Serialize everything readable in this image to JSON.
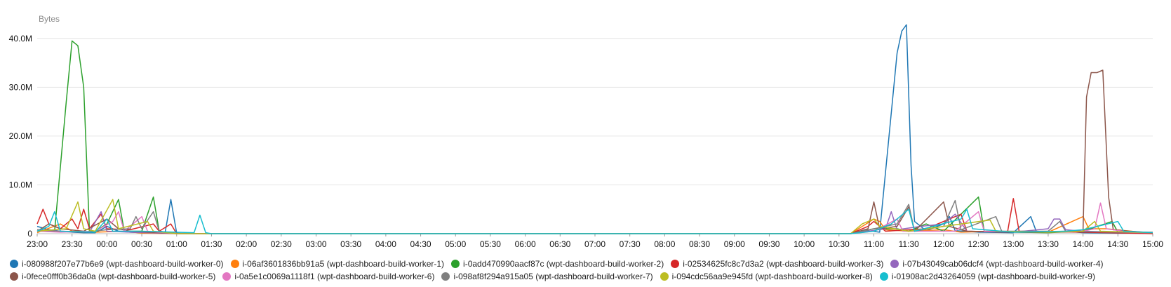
{
  "chart_data": {
    "type": "line",
    "title": "",
    "ylabel": "Bytes",
    "xlabel": "",
    "ylim": [
      0,
      45000000
    ],
    "y_ticks": [
      {
        "value": 0,
        "label": "0"
      },
      {
        "value": 10000000,
        "label": "10.0M"
      },
      {
        "value": 20000000,
        "label": "20.0M"
      },
      {
        "value": 30000000,
        "label": "30.0M"
      },
      {
        "value": 40000000,
        "label": "40.0M"
      }
    ],
    "x_ticks": [
      "23:00",
      "23:30",
      "00:00",
      "00:30",
      "01:00",
      "01:30",
      "02:00",
      "02:30",
      "03:00",
      "03:30",
      "04:00",
      "04:30",
      "05:00",
      "05:30",
      "06:00",
      "06:30",
      "07:00",
      "07:30",
      "08:00",
      "08:30",
      "09:00",
      "09:30",
      "10:00",
      "10:30",
      "11:00",
      "11:30",
      "12:00",
      "12:30",
      "13:00",
      "13:30",
      "14:00",
      "14:30",
      "15:00"
    ],
    "grid": true,
    "legend_position": "bottom",
    "series": [
      {
        "name": "i-080988f207e77b6e9 (wpt-dashboard-build-worker-0)",
        "color": "#1f77b4",
        "points": [
          [
            "23:00",
            1500000
          ],
          [
            "23:10",
            800000
          ],
          [
            "23:20",
            500000
          ],
          [
            "23:30",
            300000
          ],
          [
            "23:40",
            200000
          ],
          [
            "23:50",
            200000
          ],
          [
            "00:00",
            1500000
          ],
          [
            "00:10",
            500000
          ],
          [
            "00:20",
            300000
          ],
          [
            "00:30",
            200000
          ],
          [
            "00:40",
            300000
          ],
          [
            "00:50",
            100000
          ],
          [
            "00:55",
            7000000
          ],
          [
            "01:00",
            100000
          ],
          [
            "01:10",
            0
          ],
          [
            "10:40",
            0
          ],
          [
            "10:55",
            600000
          ],
          [
            "11:05",
            300000
          ],
          [
            "11:20",
            37000000
          ],
          [
            "11:24",
            41500000
          ],
          [
            "11:28",
            42800000
          ],
          [
            "11:32",
            14000000
          ],
          [
            "11:35",
            2500000
          ],
          [
            "11:45",
            600000
          ],
          [
            "12:00",
            2000000
          ],
          [
            "12:05",
            3500000
          ],
          [
            "12:10",
            600000
          ],
          [
            "12:30",
            300000
          ],
          [
            "13:00",
            200000
          ],
          [
            "13:15",
            3500000
          ],
          [
            "13:20",
            300000
          ],
          [
            "13:45",
            500000
          ],
          [
            "14:00",
            200000
          ],
          [
            "14:30",
            100000
          ],
          [
            "15:00",
            100000
          ]
        ]
      },
      {
        "name": "i-06af3601836bb91a5 (wpt-dashboard-build-worker-1)",
        "color": "#ff7f0e",
        "points": [
          [
            "23:00",
            200000
          ],
          [
            "23:20",
            2000000
          ],
          [
            "23:30",
            500000
          ],
          [
            "23:50",
            300000
          ],
          [
            "00:15",
            500000
          ],
          [
            "00:30",
            100000
          ],
          [
            "01:00",
            0
          ],
          [
            "10:40",
            0
          ],
          [
            "10:50",
            1500000
          ],
          [
            "11:00",
            3000000
          ],
          [
            "11:05",
            2500000
          ],
          [
            "11:10",
            800000
          ],
          [
            "11:30",
            500000
          ],
          [
            "12:00",
            800000
          ],
          [
            "12:15",
            300000
          ],
          [
            "12:45",
            500000
          ],
          [
            "13:30",
            300000
          ],
          [
            "14:00",
            3500000
          ],
          [
            "14:05",
            1000000
          ],
          [
            "14:20",
            1000000
          ],
          [
            "14:50",
            300000
          ],
          [
            "15:00",
            0
          ]
        ]
      },
      {
        "name": "i-0add470990aacf87c (wpt-dashboard-build-worker-2)",
        "color": "#2ca02c",
        "points": [
          [
            "23:00",
            500000
          ],
          [
            "23:15",
            500000
          ],
          [
            "23:25",
            27000000
          ],
          [
            "23:30",
            39500000
          ],
          [
            "23:35",
            38500000
          ],
          [
            "23:40",
            30000000
          ],
          [
            "23:45",
            500000
          ],
          [
            "23:50",
            500000
          ],
          [
            "00:00",
            2000000
          ],
          [
            "00:10",
            7000000
          ],
          [
            "00:15",
            500000
          ],
          [
            "00:30",
            500000
          ],
          [
            "00:40",
            7500000
          ],
          [
            "00:45",
            500000
          ],
          [
            "01:00",
            0
          ],
          [
            "10:40",
            0
          ],
          [
            "11:00",
            1000000
          ],
          [
            "11:20",
            1000000
          ],
          [
            "11:30",
            500000
          ],
          [
            "11:45",
            2000000
          ],
          [
            "12:00",
            500000
          ],
          [
            "12:30",
            7500000
          ],
          [
            "12:35",
            500000
          ],
          [
            "13:00",
            300000
          ],
          [
            "13:30",
            200000
          ],
          [
            "14:00",
            500000
          ],
          [
            "14:25",
            2500000
          ],
          [
            "14:30",
            300000
          ],
          [
            "15:00",
            100000
          ]
        ]
      },
      {
        "name": "i-02534625fc8c7d3a2 (wpt-dashboard-build-worker-3)",
        "color": "#d62728",
        "points": [
          [
            "23:00",
            2000000
          ],
          [
            "23:05",
            5000000
          ],
          [
            "23:10",
            2000000
          ],
          [
            "23:20",
            1000000
          ],
          [
            "23:30",
            3000000
          ],
          [
            "23:35",
            1000000
          ],
          [
            "23:40",
            5000000
          ],
          [
            "23:45",
            1000000
          ],
          [
            "23:55",
            4000000
          ],
          [
            "00:00",
            1000000
          ],
          [
            "00:20",
            800000
          ],
          [
            "00:40",
            2000000
          ],
          [
            "00:45",
            500000
          ],
          [
            "00:55",
            2000000
          ],
          [
            "01:00",
            0
          ],
          [
            "10:40",
            0
          ],
          [
            "10:55",
            1500000
          ],
          [
            "11:00",
            2500000
          ],
          [
            "11:10",
            500000
          ],
          [
            "11:45",
            1000000
          ],
          [
            "12:10",
            3500000
          ],
          [
            "12:15",
            4000000
          ],
          [
            "12:20",
            500000
          ],
          [
            "12:55",
            300000
          ],
          [
            "13:00",
            7200000
          ],
          [
            "13:05",
            500000
          ],
          [
            "14:00",
            300000
          ],
          [
            "15:00",
            0
          ]
        ]
      },
      {
        "name": "i-07b43049cab06dcf4 (wpt-dashboard-build-worker-4)",
        "color": "#9467bd",
        "points": [
          [
            "23:00",
            800000
          ],
          [
            "23:20",
            500000
          ],
          [
            "23:45",
            300000
          ],
          [
            "23:55",
            4500000
          ],
          [
            "00:00",
            500000
          ],
          [
            "00:20",
            300000
          ],
          [
            "01:00",
            0
          ],
          [
            "10:40",
            0
          ],
          [
            "11:10",
            1000000
          ],
          [
            "11:15",
            4500000
          ],
          [
            "11:20",
            800000
          ],
          [
            "11:40",
            1500000
          ],
          [
            "12:00",
            2000000
          ],
          [
            "12:10",
            4000000
          ],
          [
            "12:20",
            500000
          ],
          [
            "13:00",
            300000
          ],
          [
            "13:30",
            1000000
          ],
          [
            "13:35",
            3000000
          ],
          [
            "13:40",
            3000000
          ],
          [
            "13:45",
            800000
          ],
          [
            "14:00",
            500000
          ],
          [
            "14:30",
            300000
          ],
          [
            "15:00",
            200000
          ]
        ]
      },
      {
        "name": "i-0fece0fff0b36da0a (wpt-dashboard-build-worker-5)",
        "color": "#8c564b",
        "points": [
          [
            "23:00",
            500000
          ],
          [
            "23:10",
            2000000
          ],
          [
            "23:20",
            1000000
          ],
          [
            "23:40",
            500000
          ],
          [
            "00:00",
            3000000
          ],
          [
            "00:10",
            1000000
          ],
          [
            "00:20",
            500000
          ],
          [
            "01:00",
            0
          ],
          [
            "10:40",
            0
          ],
          [
            "10:55",
            1000000
          ],
          [
            "11:00",
            6500000
          ],
          [
            "11:05",
            1000000
          ],
          [
            "11:20",
            1500000
          ],
          [
            "11:30",
            5500000
          ],
          [
            "11:35",
            500000
          ],
          [
            "12:00",
            6500000
          ],
          [
            "12:05",
            1500000
          ],
          [
            "12:20",
            500000
          ],
          [
            "13:00",
            300000
          ],
          [
            "13:30",
            300000
          ],
          [
            "14:00",
            500000
          ],
          [
            "14:03",
            28000000
          ],
          [
            "14:07",
            33000000
          ],
          [
            "14:12",
            33000000
          ],
          [
            "14:17",
            33500000
          ],
          [
            "14:22",
            7500000
          ],
          [
            "14:26",
            800000
          ],
          [
            "14:40",
            500000
          ],
          [
            "15:00",
            200000
          ]
        ]
      },
      {
        "name": "i-0a5e1c0069a1118f1 (wpt-dashboard-build-worker-6)",
        "color": "#e377c2",
        "points": [
          [
            "23:00",
            500000
          ],
          [
            "23:20",
            300000
          ],
          [
            "23:50",
            500000
          ],
          [
            "00:05",
            2500000
          ],
          [
            "00:10",
            4500000
          ],
          [
            "00:15",
            500000
          ],
          [
            "00:30",
            3500000
          ],
          [
            "00:35",
            500000
          ],
          [
            "01:00",
            0
          ],
          [
            "10:40",
            0
          ],
          [
            "11:00",
            500000
          ],
          [
            "11:20",
            3000000
          ],
          [
            "11:25",
            500000
          ],
          [
            "12:10",
            500000
          ],
          [
            "12:30",
            4500000
          ],
          [
            "12:35",
            500000
          ],
          [
            "13:30",
            300000
          ],
          [
            "14:00",
            500000
          ],
          [
            "14:10",
            1000000
          ],
          [
            "14:15",
            6300000
          ],
          [
            "14:20",
            1000000
          ],
          [
            "14:40",
            300000
          ],
          [
            "15:00",
            200000
          ]
        ]
      },
      {
        "name": "i-098af8f294a915a05 (wpt-dashboard-build-worker-7)",
        "color": "#7f7f7f",
        "points": [
          [
            "23:00",
            800000
          ],
          [
            "23:20",
            500000
          ],
          [
            "23:40",
            300000
          ],
          [
            "00:00",
            800000
          ],
          [
            "00:20",
            1000000
          ],
          [
            "00:25",
            3500000
          ],
          [
            "00:30",
            1000000
          ],
          [
            "00:40",
            4500000
          ],
          [
            "00:45",
            500000
          ],
          [
            "01:00",
            0
          ],
          [
            "10:40",
            0
          ],
          [
            "11:00",
            1000000
          ],
          [
            "11:20",
            2000000
          ],
          [
            "11:30",
            6000000
          ],
          [
            "11:35",
            500000
          ],
          [
            "12:00",
            1500000
          ],
          [
            "12:10",
            6800000
          ],
          [
            "12:15",
            800000
          ],
          [
            "12:45",
            3500000
          ],
          [
            "12:50",
            500000
          ],
          [
            "13:30",
            500000
          ],
          [
            "13:40",
            2500000
          ],
          [
            "13:45",
            500000
          ],
          [
            "14:30",
            300000
          ],
          [
            "15:00",
            300000
          ]
        ]
      },
      {
        "name": "i-094cdc56aa9e945fd (wpt-dashboard-build-worker-8)",
        "color": "#bcbd22",
        "points": [
          [
            "23:00",
            500000
          ],
          [
            "23:25",
            1000000
          ],
          [
            "23:35",
            6500000
          ],
          [
            "23:40",
            1000000
          ],
          [
            "23:50",
            500000
          ],
          [
            "00:05",
            7000000
          ],
          [
            "00:10",
            1000000
          ],
          [
            "00:35",
            2500000
          ],
          [
            "00:40",
            500000
          ],
          [
            "01:00",
            0
          ],
          [
            "10:40",
            0
          ],
          [
            "10:50",
            2000000
          ],
          [
            "11:00",
            3000000
          ],
          [
            "11:05",
            1500000
          ],
          [
            "11:30",
            500000
          ],
          [
            "12:40",
            2800000
          ],
          [
            "12:45",
            500000
          ],
          [
            "13:30",
            300000
          ],
          [
            "14:00",
            500000
          ],
          [
            "14:10",
            2500000
          ],
          [
            "14:15",
            500000
          ],
          [
            "15:00",
            200000
          ]
        ]
      },
      {
        "name": "i-01908ac2d43264059 (wpt-dashboard-build-worker-9)",
        "color": "#17becf",
        "points": [
          [
            "23:00",
            500000
          ],
          [
            "23:10",
            1500000
          ],
          [
            "23:15",
            4500000
          ],
          [
            "23:20",
            500000
          ],
          [
            "23:50",
            300000
          ],
          [
            "00:00",
            3000000
          ],
          [
            "00:05",
            500000
          ],
          [
            "00:30",
            500000
          ],
          [
            "01:00",
            300000
          ],
          [
            "01:15",
            200000
          ],
          [
            "01:20",
            3800000
          ],
          [
            "01:25",
            200000
          ],
          [
            "01:30",
            0
          ],
          [
            "10:40",
            0
          ],
          [
            "11:00",
            500000
          ],
          [
            "11:15",
            2000000
          ],
          [
            "11:30",
            5000000
          ],
          [
            "11:35",
            500000
          ],
          [
            "12:15",
            3000000
          ],
          [
            "12:20",
            5000000
          ],
          [
            "12:25",
            1000000
          ],
          [
            "13:00",
            300000
          ],
          [
            "13:45",
            500000
          ],
          [
            "14:00",
            800000
          ],
          [
            "14:30",
            2500000
          ],
          [
            "14:35",
            500000
          ],
          [
            "15:00",
            200000
          ]
        ]
      }
    ]
  }
}
